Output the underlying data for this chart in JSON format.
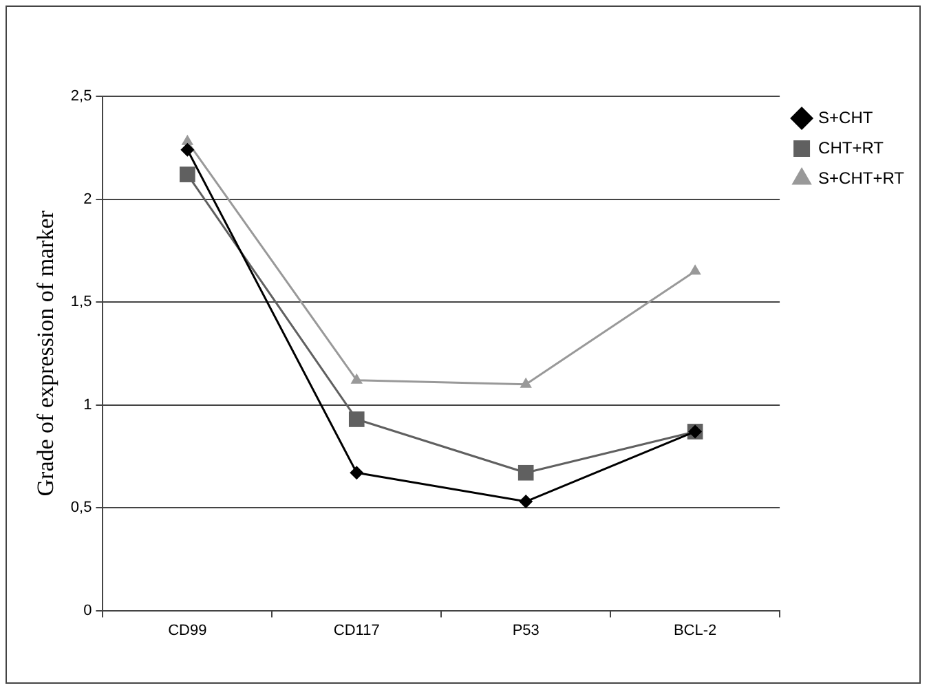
{
  "chart_data": {
    "type": "line",
    "ylabel": "Grade of expression of marker",
    "categories": [
      "CD99",
      "CD117",
      "P53",
      "BCL-2"
    ],
    "series": [
      {
        "name": "S+CHT",
        "color": "#000000",
        "marker": "diamond",
        "values": [
          2.24,
          0.67,
          0.53,
          0.87
        ]
      },
      {
        "name": "CHT+RT",
        "color": "#606060",
        "marker": "square",
        "values": [
          2.12,
          0.93,
          0.67,
          0.87
        ]
      },
      {
        "name": "S+CHT+RT",
        "color": "#999999",
        "marker": "triangle",
        "values": [
          2.28,
          1.12,
          1.1,
          1.65
        ]
      }
    ],
    "ylim": [
      0,
      2.5
    ],
    "yticks": [
      0,
      {
        "value": 0.5,
        "label": "0,5"
      },
      1,
      {
        "value": 1.5,
        "label": "1,5"
      },
      2,
      {
        "value": 2.5,
        "label": "2,5"
      }
    ],
    "grid": "y",
    "legend": "right"
  }
}
